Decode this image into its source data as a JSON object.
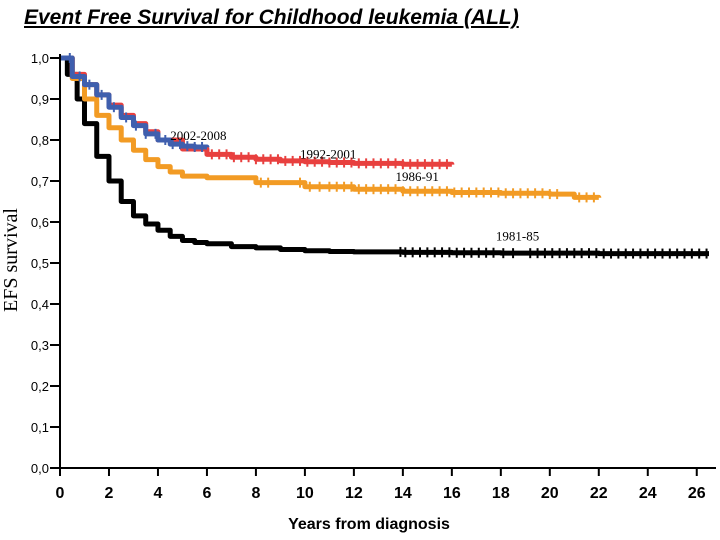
{
  "chart_data": {
    "type": "line",
    "title": "Event Free Survival for Childhood  leukemia (ALL)",
    "xlabel": "Years from diagnosis",
    "ylabel": "EFS survival",
    "xlim": [
      0,
      26.5
    ],
    "ylim": [
      0,
      1.0
    ],
    "xticks": [
      0,
      2,
      4,
      6,
      8,
      10,
      12,
      14,
      16,
      18,
      20,
      22,
      24,
      26
    ],
    "xtick_labels": [
      "0",
      "2",
      "4",
      "6",
      "8",
      "10",
      "12",
      "14",
      "16",
      "18",
      "20",
      "22",
      "24",
      "26"
    ],
    "yticks": [
      0,
      0.1,
      0.2,
      0.3,
      0.4,
      0.5,
      0.6,
      0.7,
      0.8,
      0.9,
      1.0
    ],
    "ytick_labels": [
      "0,0",
      "0,1",
      "0,2",
      "0,3",
      "0,4",
      "0,5",
      "0,6",
      "0,7",
      "0,8",
      "0,9",
      "1,0"
    ],
    "grid": false,
    "series": [
      {
        "name": "1981-85",
        "color": "#000000",
        "x": [
          0,
          0.3,
          0.7,
          1.0,
          1.5,
          2.0,
          2.5,
          3.0,
          3.5,
          4.0,
          4.5,
          5.0,
          5.5,
          6.0,
          7.0,
          8.0,
          9.0,
          10.0,
          11.0,
          12.0,
          14.0,
          16.0,
          18.0,
          20.0,
          22.0,
          24.0,
          26.5
        ],
        "y": [
          1.0,
          0.96,
          0.9,
          0.84,
          0.76,
          0.7,
          0.65,
          0.615,
          0.595,
          0.58,
          0.565,
          0.555,
          0.55,
          0.547,
          0.54,
          0.537,
          0.533,
          0.53,
          0.528,
          0.527,
          0.526,
          0.525,
          0.524,
          0.524,
          0.523,
          0.523,
          0.523
        ],
        "censor_x": [
          13.9,
          14.1,
          14.4,
          14.7,
          15.0,
          15.3,
          15.6,
          15.9,
          16.2,
          16.5,
          16.8,
          17.1,
          17.4,
          17.7,
          18.1,
          18.5,
          19.2,
          19.5,
          19.8,
          20.1,
          20.4,
          20.7,
          21.0,
          21.3,
          21.6,
          21.9,
          22.2,
          22.5,
          22.8,
          23.1,
          23.4,
          23.7,
          24.0,
          24.3,
          24.6,
          24.9,
          25.2,
          25.5,
          25.8,
          26.1,
          26.4
        ],
        "label": "1981-85",
        "label_at": [
          17.8,
          0.555
        ]
      },
      {
        "name": "1986-91",
        "color": "#f29b24",
        "x": [
          0,
          0.5,
          1.0,
          1.5,
          2.0,
          2.5,
          3.0,
          3.5,
          4.0,
          4.5,
          5.0,
          6.0,
          8.0,
          10.0,
          12.0,
          14.0,
          16.0,
          18.0,
          20.0,
          20.7,
          21.0,
          22.0
        ],
        "y": [
          1.0,
          0.95,
          0.9,
          0.86,
          0.83,
          0.8,
          0.775,
          0.752,
          0.735,
          0.722,
          0.712,
          0.708,
          0.696,
          0.686,
          0.68,
          0.675,
          0.672,
          0.67,
          0.668,
          0.668,
          0.66,
          0.659
        ],
        "censor_x": [
          8.2,
          8.5,
          9.8,
          10.2,
          10.6,
          11.0,
          11.3,
          11.6,
          11.9,
          12.2,
          12.5,
          12.8,
          13.1,
          13.4,
          13.7,
          14.0,
          14.3,
          14.6,
          14.9,
          15.2,
          15.5,
          15.8,
          16.1,
          16.4,
          16.7,
          17.0,
          17.3,
          17.6,
          17.9,
          18.2,
          18.5,
          18.8,
          19.1,
          19.4,
          19.7,
          20.0,
          20.3,
          21.2,
          21.5,
          21.8
        ],
        "label": "1986-91",
        "label_at": [
          13.7,
          0.7
        ]
      },
      {
        "name": "1992-2001",
        "color": "#e8403f",
        "x": [
          0,
          0.5,
          1.0,
          1.5,
          2.0,
          2.5,
          3.0,
          3.5,
          4.0,
          5.0,
          6.0,
          7.0,
          8.0,
          9.0,
          10.0,
          11.0,
          12.0,
          14.0,
          16.0
        ],
        "y": [
          1.0,
          0.96,
          0.935,
          0.91,
          0.885,
          0.86,
          0.84,
          0.82,
          0.8,
          0.778,
          0.765,
          0.758,
          0.753,
          0.749,
          0.747,
          0.745,
          0.743,
          0.741,
          0.74
        ],
        "censor_x": [
          6.2,
          6.5,
          6.8,
          7.1,
          7.4,
          7.7,
          8.0,
          8.3,
          8.6,
          8.9,
          9.2,
          9.5,
          9.8,
          10.1,
          10.4,
          10.7,
          11.0,
          11.3,
          11.6,
          11.9,
          12.2,
          12.5,
          12.8,
          13.1,
          13.4,
          13.7,
          14.0,
          14.3,
          14.6,
          14.9,
          15.2,
          15.5,
          15.8
        ],
        "label": "1992-2001",
        "label_at": [
          9.8,
          0.755
        ]
      },
      {
        "name": "2002-2008",
        "color": "#3f5fae",
        "x": [
          0,
          0.5,
          1.0,
          1.5,
          2.0,
          2.5,
          3.0,
          3.5,
          4.0,
          4.5,
          5.0,
          5.5,
          6.0
        ],
        "y": [
          1.0,
          0.955,
          0.935,
          0.91,
          0.88,
          0.855,
          0.835,
          0.815,
          0.8,
          0.79,
          0.785,
          0.783,
          0.782
        ],
        "censor_x": [
          0.4,
          0.8,
          1.2,
          1.7,
          2.2,
          2.7,
          3.1,
          3.5,
          3.9,
          4.3,
          4.6,
          4.9,
          5.2,
          5.5,
          5.8
        ],
        "label": "2002-2008",
        "label_at": [
          4.5,
          0.8
        ]
      }
    ]
  }
}
